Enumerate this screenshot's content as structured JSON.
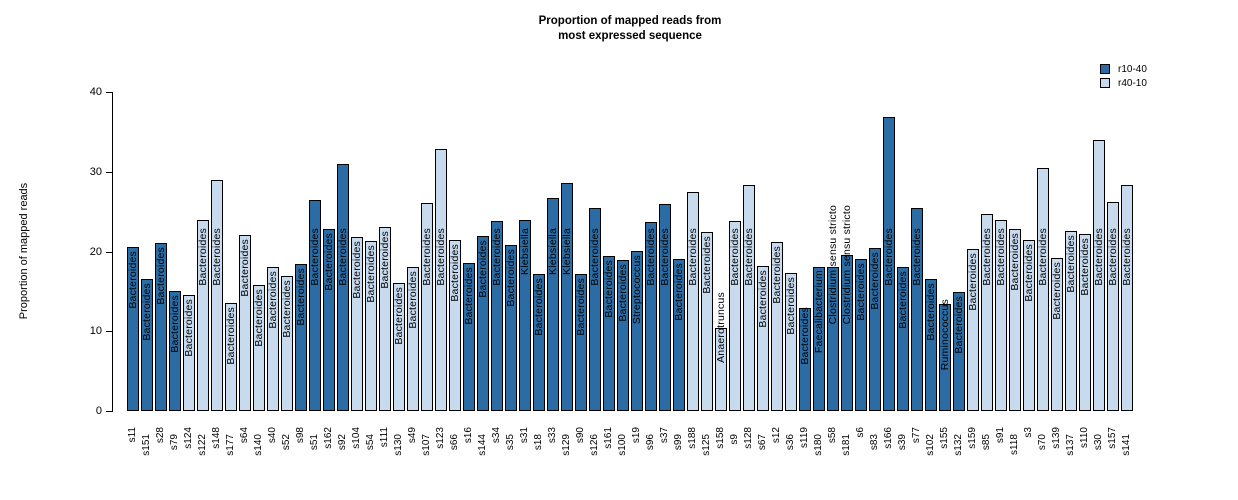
{
  "title": {
    "line1": "Proportion of mapped reads from",
    "line2": "most expressed sequence"
  },
  "legend": {
    "items": [
      {
        "label": "r10-40",
        "color": "#2b6ca4"
      },
      {
        "label": "r40-10",
        "color": "#c7daee"
      }
    ]
  },
  "chart_data": {
    "type": "bar",
    "title": "Proportion of mapped reads from most expressed sequence",
    "xlabel": "",
    "ylabel": "Proportion of mapped reads",
    "ylim": [
      0,
      40
    ],
    "yticks": [
      0,
      10,
      20,
      30,
      40
    ],
    "grid": false,
    "legend_position": "top-right",
    "series_colors": {
      "r10-40": "#2b6ca4",
      "r40-10": "#c7daee"
    },
    "bar_label_note": "each bar is annotated inside with the genus of the most expressed sequence",
    "bars": [
      {
        "sample": "s11",
        "value": 20.6,
        "group": "r10-40",
        "top_genus": "Bacteroides"
      },
      {
        "sample": "s151",
        "value": 16.6,
        "group": "r10-40",
        "top_genus": "Bacteroides"
      },
      {
        "sample": "s28",
        "value": 21.1,
        "group": "r10-40",
        "top_genus": "Bacteroides"
      },
      {
        "sample": "s79",
        "value": 15.0,
        "group": "r10-40",
        "top_genus": "Bacteroides"
      },
      {
        "sample": "s124",
        "value": 14.6,
        "group": "r40-10",
        "top_genus": "Bacteroides"
      },
      {
        "sample": "s122",
        "value": 24.0,
        "group": "r40-10",
        "top_genus": "Bacteroides"
      },
      {
        "sample": "s148",
        "value": 29.0,
        "group": "r40-10",
        "top_genus": "Bacteroides"
      },
      {
        "sample": "s177",
        "value": 13.5,
        "group": "r40-10",
        "top_genus": "Bacteroides"
      },
      {
        "sample": "s64",
        "value": 22.1,
        "group": "r40-10",
        "top_genus": "Bacteroides"
      },
      {
        "sample": "s140",
        "value": 15.8,
        "group": "r40-10",
        "top_genus": "Bacteroides"
      },
      {
        "sample": "s40",
        "value": 18.0,
        "group": "r40-10",
        "top_genus": "Bacteroides"
      },
      {
        "sample": "s52",
        "value": 16.9,
        "group": "r40-10",
        "top_genus": "Bacteroides"
      },
      {
        "sample": "s98",
        "value": 18.4,
        "group": "r10-40",
        "top_genus": "Bacteroides"
      },
      {
        "sample": "s51",
        "value": 26.4,
        "group": "r10-40",
        "top_genus": "Bacteroides"
      },
      {
        "sample": "s162",
        "value": 22.8,
        "group": "r10-40",
        "top_genus": "Bacteroides"
      },
      {
        "sample": "s92",
        "value": 31.0,
        "group": "r10-40",
        "top_genus": "Bacteroides"
      },
      {
        "sample": "s104",
        "value": 21.8,
        "group": "r40-10",
        "top_genus": "Bacteroides"
      },
      {
        "sample": "s54",
        "value": 21.3,
        "group": "r40-10",
        "top_genus": "Bacteroides"
      },
      {
        "sample": "s111",
        "value": 23.1,
        "group": "r40-10",
        "top_genus": "Bacteroides"
      },
      {
        "sample": "s130",
        "value": 16.1,
        "group": "r40-10",
        "top_genus": "Bacteroides"
      },
      {
        "sample": "s49",
        "value": 18.0,
        "group": "r40-10",
        "top_genus": "Bacteroides"
      },
      {
        "sample": "s107",
        "value": 26.1,
        "group": "r40-10",
        "top_genus": "Bacteroides"
      },
      {
        "sample": "s123",
        "value": 32.9,
        "group": "r40-10",
        "top_genus": "Bacteroides"
      },
      {
        "sample": "s66",
        "value": 21.5,
        "group": "r40-10",
        "top_genus": "Bacteroides"
      },
      {
        "sample": "s16",
        "value": 18.6,
        "group": "r10-40",
        "top_genus": "Bacteroides"
      },
      {
        "sample": "s144",
        "value": 21.9,
        "group": "r10-40",
        "top_genus": "Bacteroides"
      },
      {
        "sample": "s34",
        "value": 23.8,
        "group": "r10-40",
        "top_genus": "Bacteroides"
      },
      {
        "sample": "s35",
        "value": 20.8,
        "group": "r10-40",
        "top_genus": "Bacteroides"
      },
      {
        "sample": "s31",
        "value": 23.9,
        "group": "r10-40",
        "top_genus": "Klebsiella"
      },
      {
        "sample": "s18",
        "value": 17.2,
        "group": "r10-40",
        "top_genus": "Bacteroides"
      },
      {
        "sample": "s33",
        "value": 26.7,
        "group": "r10-40",
        "top_genus": "Klebsiella"
      },
      {
        "sample": "s129",
        "value": 28.6,
        "group": "r10-40",
        "top_genus": "Klebsiella"
      },
      {
        "sample": "s90",
        "value": 17.2,
        "group": "r10-40",
        "top_genus": "Bacteroides"
      },
      {
        "sample": "s126",
        "value": 25.4,
        "group": "r10-40",
        "top_genus": "Bacteroides"
      },
      {
        "sample": "s161",
        "value": 19.4,
        "group": "r10-40",
        "top_genus": "Bacteroides"
      },
      {
        "sample": "s100",
        "value": 18.9,
        "group": "r10-40",
        "top_genus": "Bacteroides"
      },
      {
        "sample": "s19",
        "value": 20.1,
        "group": "r10-40",
        "top_genus": "Streptococcus"
      },
      {
        "sample": "s96",
        "value": 23.7,
        "group": "r10-40",
        "top_genus": "Bacteroides"
      },
      {
        "sample": "s37",
        "value": 25.9,
        "group": "r10-40",
        "top_genus": "Bacteroides"
      },
      {
        "sample": "s99",
        "value": 19.1,
        "group": "r10-40",
        "top_genus": "Bacteroides"
      },
      {
        "sample": "s188",
        "value": 27.4,
        "group": "r40-10",
        "top_genus": "Bacteroides"
      },
      {
        "sample": "s125",
        "value": 22.4,
        "group": "r40-10",
        "top_genus": "Bacteroides"
      },
      {
        "sample": "s158",
        "value": 10.4,
        "group": "r40-10",
        "top_genus": "Anaerotruncus"
      },
      {
        "sample": "s9",
        "value": 23.8,
        "group": "r40-10",
        "top_genus": "Bacteroides"
      },
      {
        "sample": "s128",
        "value": 28.4,
        "group": "r40-10",
        "top_genus": "Bacteroides"
      },
      {
        "sample": "s67",
        "value": 18.2,
        "group": "r40-10",
        "top_genus": "Bacteroides"
      },
      {
        "sample": "s12",
        "value": 21.2,
        "group": "r40-10",
        "top_genus": "Bacteroides"
      },
      {
        "sample": "s36",
        "value": 17.3,
        "group": "r40-10",
        "top_genus": "Bacteroides"
      },
      {
        "sample": "s119",
        "value": 12.9,
        "group": "r10-40",
        "top_genus": "Bacteroides"
      },
      {
        "sample": "s180",
        "value": 18.0,
        "group": "r10-40",
        "top_genus": "Faecalibacterium"
      },
      {
        "sample": "s58",
        "value": 18.0,
        "group": "r10-40",
        "top_genus": "Clostridium sensu stricto"
      },
      {
        "sample": "s181",
        "value": 19.5,
        "group": "r10-40",
        "top_genus": "Clostridium sensu stricto"
      },
      {
        "sample": "s6",
        "value": 19.1,
        "group": "r10-40",
        "top_genus": "Bacteroides"
      },
      {
        "sample": "s83",
        "value": 20.5,
        "group": "r10-40",
        "top_genus": "Bacteroides"
      },
      {
        "sample": "s166",
        "value": 36.9,
        "group": "r10-40",
        "top_genus": "Bacteroides"
      },
      {
        "sample": "s39",
        "value": 18.1,
        "group": "r10-40",
        "top_genus": "Bacteroides"
      },
      {
        "sample": "s77",
        "value": 25.4,
        "group": "r10-40",
        "top_genus": "Bacteroides"
      },
      {
        "sample": "s102",
        "value": 16.5,
        "group": "r10-40",
        "top_genus": "Bacteroides"
      },
      {
        "sample": "s155",
        "value": 13.4,
        "group": "r10-40",
        "top_genus": "Ruminococcus"
      },
      {
        "sample": "s132",
        "value": 14.9,
        "group": "r10-40",
        "top_genus": "Bacteroides"
      },
      {
        "sample": "s159",
        "value": 20.3,
        "group": "r40-10",
        "top_genus": "Bacteroides"
      },
      {
        "sample": "s85",
        "value": 24.7,
        "group": "r40-10",
        "top_genus": "Bacteroides"
      },
      {
        "sample": "s91",
        "value": 23.9,
        "group": "r40-10",
        "top_genus": "Bacteroides"
      },
      {
        "sample": "s118",
        "value": 22.8,
        "group": "r40-10",
        "top_genus": "Bacteroides"
      },
      {
        "sample": "s3",
        "value": 21.5,
        "group": "r40-10",
        "top_genus": "Bacteroides"
      },
      {
        "sample": "s70",
        "value": 30.5,
        "group": "r40-10",
        "top_genus": "Bacteroides"
      },
      {
        "sample": "s139",
        "value": 19.2,
        "group": "r40-10",
        "top_genus": "Bacteroides"
      },
      {
        "sample": "s137",
        "value": 22.6,
        "group": "r40-10",
        "top_genus": "Bacteroides"
      },
      {
        "sample": "s110",
        "value": 22.2,
        "group": "r40-10",
        "top_genus": "Bacteroides"
      },
      {
        "sample": "s30",
        "value": 34.0,
        "group": "r40-10",
        "top_genus": "Bacteroides"
      },
      {
        "sample": "s157",
        "value": 26.2,
        "group": "r40-10",
        "top_genus": "Bacteroides"
      },
      {
        "sample": "s141",
        "value": 28.3,
        "group": "r40-10",
        "top_genus": "Bacteroides"
      }
    ]
  }
}
